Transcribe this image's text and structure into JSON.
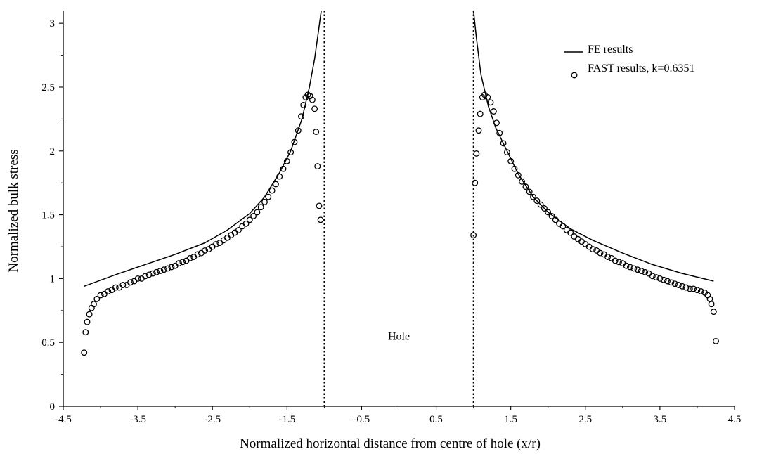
{
  "chart_data": {
    "type": "scatter",
    "title": "",
    "xlabel": "Normalized horizontal distance from centre of hole (x/r)",
    "ylabel": "Normalized bulk stress",
    "xlim": [
      -4.5,
      4.5
    ],
    "ylim": [
      0,
      3.1
    ],
    "x_ticks": [
      -4.5,
      -3.5,
      -2.5,
      -1.5,
      -0.5,
      0.5,
      1.5,
      2.5,
      3.5,
      4.5
    ],
    "x_tick_labels": [
      "-4.5",
      "-3.5",
      "-2.5",
      "-1.5",
      "-0.5",
      "0.5",
      "1.5",
      "2.5",
      "3.5",
      "4.5"
    ],
    "y_ticks": [
      0,
      0.5,
      1,
      1.5,
      2,
      2.5,
      3
    ],
    "y_tick_labels": [
      "0",
      "0.5",
      "1",
      "1.5",
      "2",
      "2.5",
      "3"
    ],
    "grid": false,
    "legend_position": "top-right",
    "annotations": [
      {
        "text": "Hole",
        "x": 0.0,
        "y": 0.52
      }
    ],
    "reference_lines": [
      {
        "orientation": "vertical",
        "x": -1.0,
        "style": "dotted"
      },
      {
        "orientation": "vertical",
        "x": 1.0,
        "style": "dotted"
      }
    ],
    "series": [
      {
        "name": "FE results",
        "kind": "line",
        "color": "#000000",
        "segments": [
          {
            "x": [
              -4.22,
              -3.8,
              -3.4,
              -3.0,
              -2.6,
              -2.3,
              -2.0,
              -1.8,
              -1.6,
              -1.45,
              -1.3,
              -1.2,
              -1.13,
              -1.08,
              -1.04
            ],
            "y": [
              0.94,
              1.03,
              1.11,
              1.19,
              1.28,
              1.38,
              1.51,
              1.64,
              1.83,
              2.0,
              2.25,
              2.5,
              2.72,
              2.93,
              3.1
            ]
          },
          {
            "x": [
              1.0,
              1.04,
              1.1,
              1.2,
              1.3,
              1.45,
              1.6,
              1.8,
              2.0,
              2.3,
              2.6,
              3.0,
              3.4,
              3.8,
              4.22
            ],
            "y": [
              3.1,
              2.88,
              2.6,
              2.35,
              2.18,
              2.0,
              1.82,
              1.64,
              1.52,
              1.39,
              1.3,
              1.2,
              1.11,
              1.04,
              0.98
            ]
          }
        ]
      },
      {
        "name": "FAST results, k=0.6351",
        "kind": "scatter",
        "marker": "open-circle",
        "color": "#000000",
        "points": [
          [
            -4.22,
            0.42
          ],
          [
            -4.2,
            0.58
          ],
          [
            -4.18,
            0.66
          ],
          [
            -4.15,
            0.72
          ],
          [
            -4.12,
            0.77
          ],
          [
            -4.09,
            0.8
          ],
          [
            -4.05,
            0.84
          ],
          [
            -4.0,
            0.87
          ],
          [
            -3.95,
            0.88
          ],
          [
            -3.9,
            0.9
          ],
          [
            -3.85,
            0.91
          ],
          [
            -3.8,
            0.93
          ],
          [
            -3.75,
            0.93
          ],
          [
            -3.7,
            0.95
          ],
          [
            -3.65,
            0.95
          ],
          [
            -3.6,
            0.97
          ],
          [
            -3.55,
            0.98
          ],
          [
            -3.5,
            1.0
          ],
          [
            -3.45,
            1.0
          ],
          [
            -3.4,
            1.02
          ],
          [
            -3.35,
            1.03
          ],
          [
            -3.3,
            1.04
          ],
          [
            -3.25,
            1.05
          ],
          [
            -3.2,
            1.06
          ],
          [
            -3.15,
            1.07
          ],
          [
            -3.1,
            1.08
          ],
          [
            -3.05,
            1.09
          ],
          [
            -3.0,
            1.1
          ],
          [
            -2.95,
            1.12
          ],
          [
            -2.9,
            1.13
          ],
          [
            -2.85,
            1.14
          ],
          [
            -2.8,
            1.16
          ],
          [
            -2.75,
            1.17
          ],
          [
            -2.7,
            1.19
          ],
          [
            -2.65,
            1.2
          ],
          [
            -2.6,
            1.22
          ],
          [
            -2.55,
            1.23
          ],
          [
            -2.5,
            1.25
          ],
          [
            -2.45,
            1.27
          ],
          [
            -2.4,
            1.28
          ],
          [
            -2.35,
            1.3
          ],
          [
            -2.3,
            1.32
          ],
          [
            -2.25,
            1.34
          ],
          [
            -2.2,
            1.36
          ],
          [
            -2.15,
            1.38
          ],
          [
            -2.1,
            1.41
          ],
          [
            -2.05,
            1.43
          ],
          [
            -2.0,
            1.46
          ],
          [
            -1.95,
            1.49
          ],
          [
            -1.9,
            1.52
          ],
          [
            -1.85,
            1.56
          ],
          [
            -1.8,
            1.6
          ],
          [
            -1.75,
            1.64
          ],
          [
            -1.7,
            1.69
          ],
          [
            -1.65,
            1.74
          ],
          [
            -1.6,
            1.8
          ],
          [
            -1.55,
            1.86
          ],
          [
            -1.5,
            1.92
          ],
          [
            -1.45,
            1.99
          ],
          [
            -1.4,
            2.07
          ],
          [
            -1.35,
            2.16
          ],
          [
            -1.31,
            2.27
          ],
          [
            -1.28,
            2.36
          ],
          [
            -1.25,
            2.42
          ],
          [
            -1.22,
            2.44
          ],
          [
            -1.19,
            2.43
          ],
          [
            -1.16,
            2.4
          ],
          [
            -1.13,
            2.33
          ],
          [
            -1.11,
            2.15
          ],
          [
            -1.09,
            1.88
          ],
          [
            -1.07,
            1.57
          ],
          [
            -1.05,
            1.46
          ],
          [
            1.0,
            1.34
          ],
          [
            1.02,
            1.75
          ],
          [
            1.04,
            1.98
          ],
          [
            1.07,
            2.16
          ],
          [
            1.09,
            2.29
          ],
          [
            1.12,
            2.42
          ],
          [
            1.15,
            2.44
          ],
          [
            1.19,
            2.42
          ],
          [
            1.23,
            2.38
          ],
          [
            1.27,
            2.31
          ],
          [
            1.31,
            2.22
          ],
          [
            1.35,
            2.14
          ],
          [
            1.4,
            2.06
          ],
          [
            1.45,
            1.99
          ],
          [
            1.5,
            1.92
          ],
          [
            1.55,
            1.86
          ],
          [
            1.6,
            1.81
          ],
          [
            1.65,
            1.76
          ],
          [
            1.7,
            1.72
          ],
          [
            1.75,
            1.68
          ],
          [
            1.8,
            1.64
          ],
          [
            1.85,
            1.61
          ],
          [
            1.9,
            1.58
          ],
          [
            1.95,
            1.55
          ],
          [
            2.0,
            1.52
          ],
          [
            2.05,
            1.49
          ],
          [
            2.1,
            1.46
          ],
          [
            2.15,
            1.43
          ],
          [
            2.2,
            1.41
          ],
          [
            2.25,
            1.38
          ],
          [
            2.3,
            1.36
          ],
          [
            2.35,
            1.33
          ],
          [
            2.4,
            1.31
          ],
          [
            2.45,
            1.29
          ],
          [
            2.5,
            1.27
          ],
          [
            2.55,
            1.25
          ],
          [
            2.6,
            1.23
          ],
          [
            2.65,
            1.22
          ],
          [
            2.7,
            1.2
          ],
          [
            2.75,
            1.19
          ],
          [
            2.8,
            1.17
          ],
          [
            2.85,
            1.16
          ],
          [
            2.9,
            1.14
          ],
          [
            2.95,
            1.13
          ],
          [
            3.0,
            1.12
          ],
          [
            3.05,
            1.1
          ],
          [
            3.1,
            1.09
          ],
          [
            3.15,
            1.08
          ],
          [
            3.2,
            1.07
          ],
          [
            3.25,
            1.06
          ],
          [
            3.3,
            1.05
          ],
          [
            3.35,
            1.04
          ],
          [
            3.4,
            1.02
          ],
          [
            3.45,
            1.01
          ],
          [
            3.5,
            1.0
          ],
          [
            3.55,
            0.99
          ],
          [
            3.6,
            0.98
          ],
          [
            3.65,
            0.97
          ],
          [
            3.7,
            0.96
          ],
          [
            3.75,
            0.95
          ],
          [
            3.8,
            0.94
          ],
          [
            3.85,
            0.93
          ],
          [
            3.9,
            0.92
          ],
          [
            3.95,
            0.92
          ],
          [
            4.0,
            0.91
          ],
          [
            4.05,
            0.9
          ],
          [
            4.1,
            0.89
          ],
          [
            4.14,
            0.87
          ],
          [
            4.17,
            0.84
          ],
          [
            4.19,
            0.8
          ],
          [
            4.22,
            0.74
          ],
          [
            4.25,
            0.51
          ]
        ]
      }
    ]
  }
}
